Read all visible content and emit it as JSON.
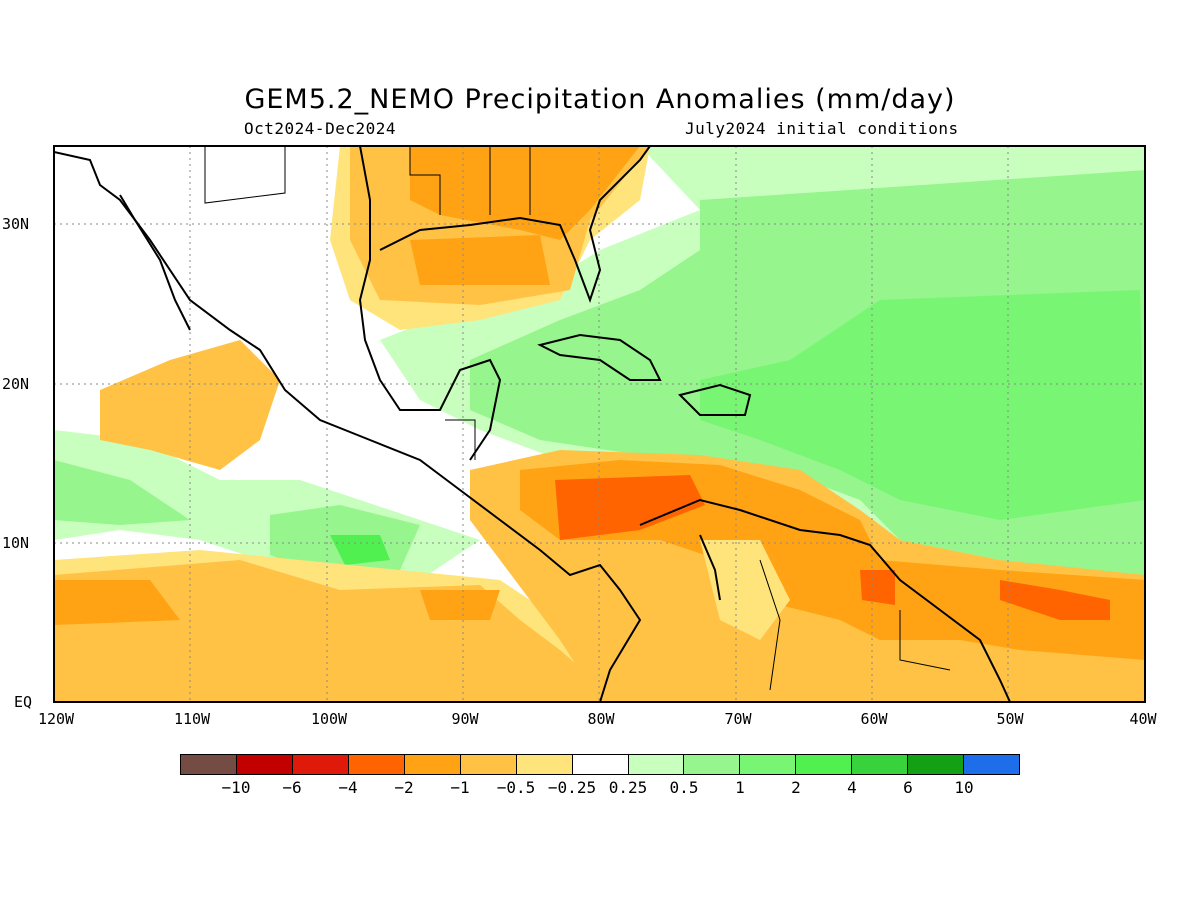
{
  "title": "GEM5.2_NEMO Precipitation Anomalies (mm/day)",
  "period": "Oct2024-Dec2024",
  "init": "July2024 initial conditions",
  "lat_labels": [
    "30N",
    "20N",
    "10N",
    "EQ"
  ],
  "lon_labels": [
    "120W",
    "110W",
    "100W",
    "90W",
    "80W",
    "70W",
    "60W",
    "50W",
    "40W"
  ],
  "colorbar": {
    "labels": [
      "-10",
      "-6",
      "-4",
      "-2",
      "-1",
      "-0.5",
      "-0.25",
      "0.25",
      "0.5",
      "1",
      "2",
      "4",
      "6",
      "10"
    ],
    "colors": [
      "#754c43",
      "#c20000",
      "#e01a0a",
      "#ff6400",
      "#ffa314",
      "#ffc245",
      "#ffe37b",
      "#ffffff",
      "#c8ffbe",
      "#96f58c",
      "#78f573",
      "#50f050",
      "#37d23c",
      "#14a014",
      "#1e6eeb"
    ]
  },
  "map": {
    "lon_range": [
      -120,
      -40
    ],
    "lat_range": [
      0,
      35
    ]
  }
}
